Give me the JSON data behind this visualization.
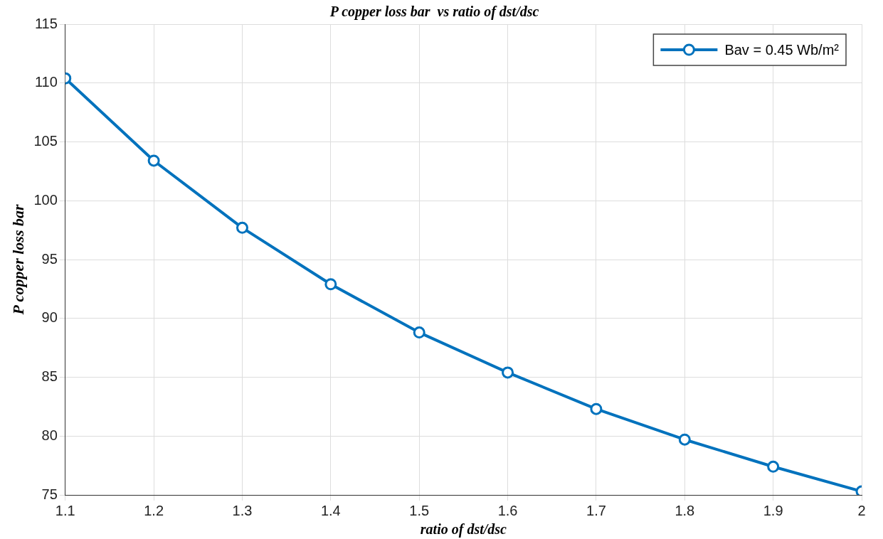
{
  "chart_data": {
    "type": "line",
    "title": "P copper loss bar  vs ratio of dst/dsc",
    "xlabel": "ratio of dst/dsc",
    "ylabel": "P copper loss bar",
    "x": [
      1.1,
      1.2,
      1.3,
      1.4,
      1.5,
      1.6,
      1.7,
      1.8,
      1.9,
      2
    ],
    "series": [
      {
        "name": "Bav = 0.45 Wb/m²",
        "color": "#0072bd",
        "values": [
          110.4,
          103.4,
          97.7,
          92.9,
          88.8,
          85.4,
          82.3,
          79.7,
          77.4,
          75.3
        ]
      }
    ],
    "xlim": [
      1.1,
      2
    ],
    "xticks": [
      1.1,
      1.2,
      1.3,
      1.4,
      1.5,
      1.6,
      1.7,
      1.8,
      1.9,
      2
    ],
    "ylim": [
      75,
      115
    ],
    "yticks": [
      75,
      80,
      85,
      90,
      95,
      100,
      105,
      110,
      115
    ],
    "grid": true,
    "legend": "top right",
    "marker": "circle",
    "line_style": "solid"
  }
}
